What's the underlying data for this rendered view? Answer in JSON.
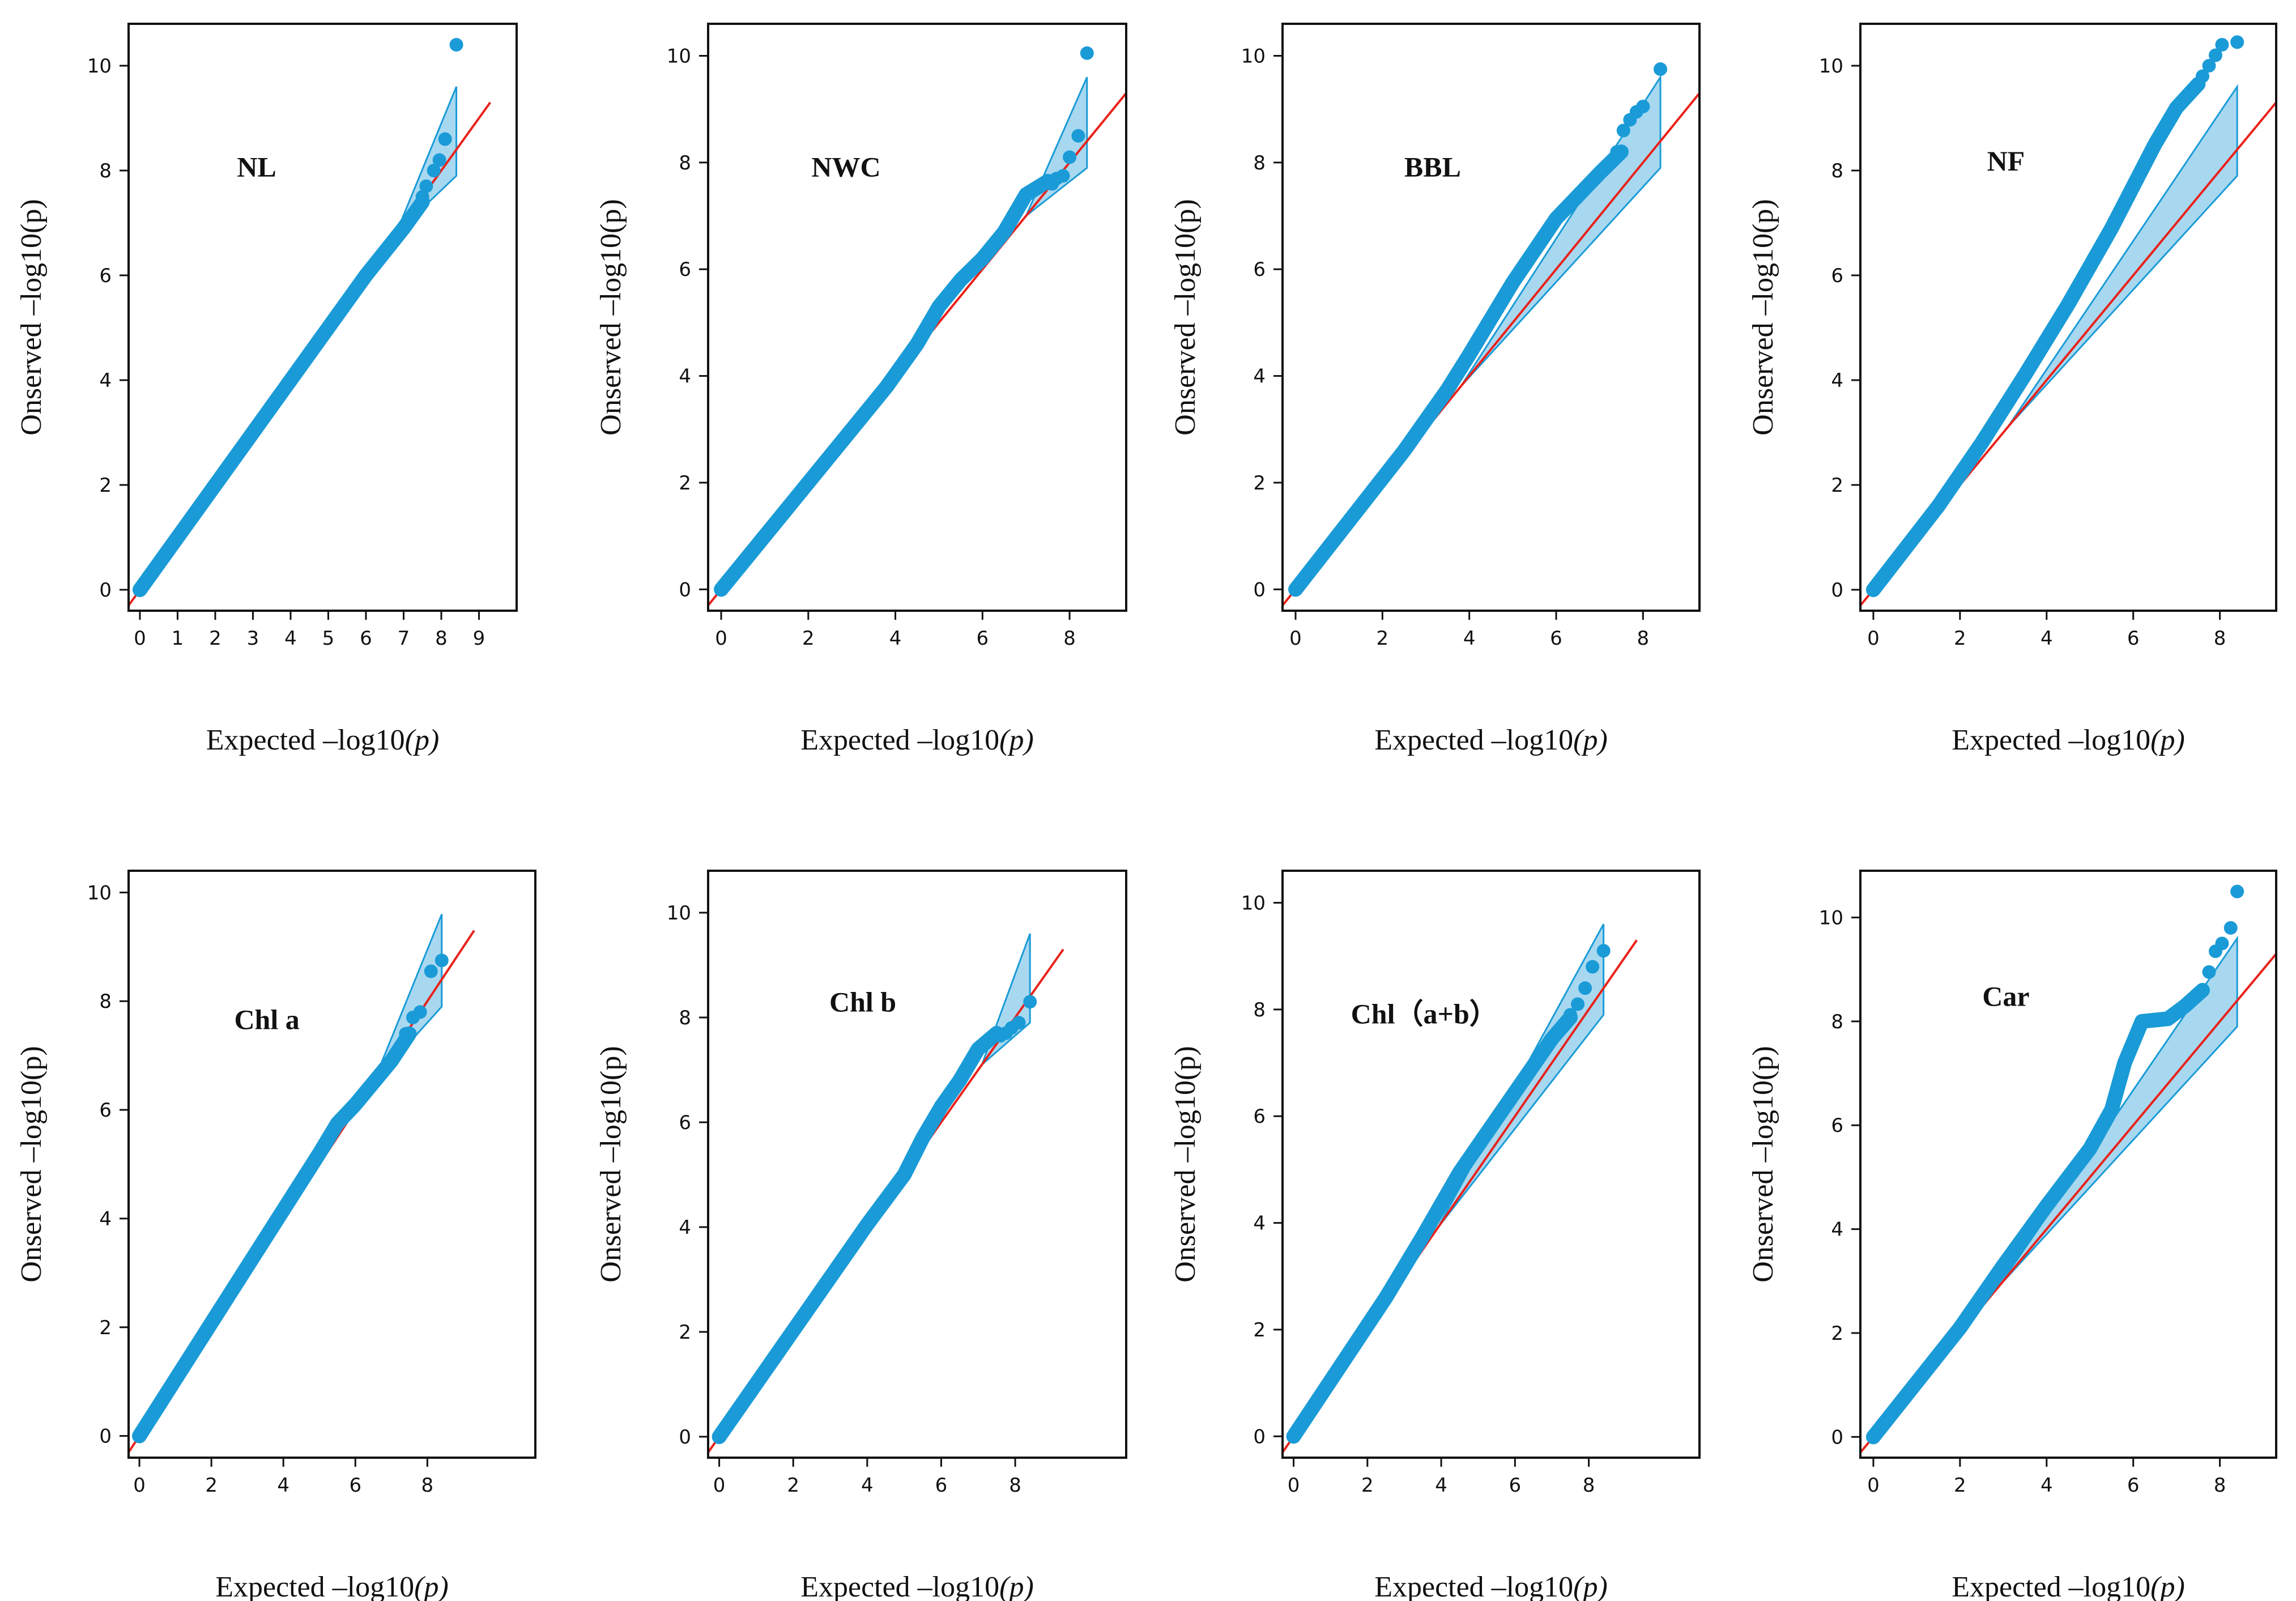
{
  "figure": {
    "style": {
      "point_color": "#1a9bd7",
      "band_fill": "#a8d8f0",
      "band_stroke": "#1a9bd7",
      "diagonal_color": "#e8221b",
      "frame_color": "#111111"
    }
  },
  "chart_data": [
    {
      "type": "scatter",
      "title": "NL",
      "xlabel": "Expected –log10",
      "xlabel_italic": "(p)",
      "ylabel": "Onserved –log10(p)",
      "xlim": [
        -0.3,
        10.0
      ],
      "ylim": [
        -0.4,
        10.8
      ],
      "xticks": [
        0,
        1,
        2,
        3,
        4,
        5,
        6,
        7,
        8,
        9
      ],
      "yticks": [
        0,
        2,
        4,
        6,
        8,
        10
      ],
      "diagonal_to": 9.3,
      "band": {
        "from": 6.8,
        "to": 8.4,
        "upper_end": 9.6,
        "lower_end": 7.9
      },
      "qq_curve": [
        [
          0,
          0
        ],
        [
          6.0,
          6.0
        ],
        [
          6.5,
          6.45
        ],
        [
          7.0,
          6.9
        ],
        [
          7.5,
          7.4
        ]
      ],
      "tail_points": [
        [
          7.5,
          7.5
        ],
        [
          7.6,
          7.7
        ],
        [
          7.8,
          8.0
        ],
        [
          7.95,
          8.2
        ],
        [
          8.1,
          8.6
        ],
        [
          8.4,
          10.4
        ]
      ]
    },
    {
      "type": "scatter",
      "title": "NWC",
      "xlabel": "Expected –log10",
      "xlabel_italic": "(p)",
      "ylabel": "Onserved –log10(p)",
      "xlim": [
        -0.3,
        9.3
      ],
      "ylim": [
        -0.4,
        10.6
      ],
      "xticks": [
        0,
        2,
        4,
        6,
        8
      ],
      "yticks": [
        0,
        2,
        4,
        6,
        8,
        10
      ],
      "diagonal_to": 9.3,
      "band": {
        "from": 7.0,
        "to": 8.4,
        "upper_end": 9.6,
        "lower_end": 7.9
      },
      "qq_curve": [
        [
          0,
          0
        ],
        [
          3.8,
          3.8
        ],
        [
          4.5,
          4.6
        ],
        [
          5.0,
          5.3
        ],
        [
          5.5,
          5.8
        ],
        [
          6.0,
          6.2
        ],
        [
          6.5,
          6.7
        ],
        [
          7.0,
          7.4
        ],
        [
          7.5,
          7.65
        ]
      ],
      "tail_points": [
        [
          7.6,
          7.6
        ],
        [
          7.7,
          7.7
        ],
        [
          7.85,
          7.75
        ],
        [
          8.0,
          8.1
        ],
        [
          8.2,
          8.5
        ],
        [
          8.4,
          10.05
        ]
      ]
    },
    {
      "type": "scatter",
      "title": "BBL",
      "xlabel": "Expected –log10",
      "xlabel_italic": "(p)",
      "ylabel": "Onserved –log10(p)",
      "xlim": [
        -0.3,
        9.3
      ],
      "ylim": [
        -0.4,
        10.6
      ],
      "xticks": [
        0,
        2,
        4,
        6,
        8
      ],
      "yticks": [
        0,
        2,
        4,
        6,
        8,
        10
      ],
      "diagonal_to": 9.3,
      "band": {
        "from": 3.8,
        "to": 8.4,
        "upper_end": 9.6,
        "lower_end": 7.9
      },
      "qq_curve": [
        [
          0,
          0
        ],
        [
          2.5,
          2.6
        ],
        [
          3.5,
          3.75
        ],
        [
          4.0,
          4.4
        ],
        [
          5.0,
          5.75
        ],
        [
          6.0,
          6.95
        ],
        [
          7.0,
          7.8
        ],
        [
          7.5,
          8.2
        ]
      ],
      "tail_points": [
        [
          7.4,
          8.2
        ],
        [
          7.55,
          8.6
        ],
        [
          7.7,
          8.8
        ],
        [
          7.85,
          8.95
        ],
        [
          8.0,
          9.05
        ],
        [
          8.4,
          9.75
        ]
      ]
    },
    {
      "type": "scatter",
      "title": "NF",
      "xlabel": "Expected –log10",
      "xlabel_italic": "(p)",
      "ylabel": "Onserved –log10(p)",
      "xlim": [
        -0.3,
        9.3
      ],
      "ylim": [
        -0.4,
        10.8
      ],
      "xticks": [
        0,
        2,
        4,
        6,
        8
      ],
      "yticks": [
        0,
        2,
        4,
        6,
        8,
        10
      ],
      "diagonal_to": 9.3,
      "band": {
        "from": 3.1,
        "to": 8.4,
        "upper_end": 9.6,
        "lower_end": 7.9
      },
      "qq_curve": [
        [
          0,
          0
        ],
        [
          1.5,
          1.6
        ],
        [
          2.5,
          2.8
        ],
        [
          3.5,
          4.1
        ],
        [
          4.5,
          5.45
        ],
        [
          5.5,
          6.9
        ],
        [
          6.5,
          8.5
        ],
        [
          7.0,
          9.2
        ],
        [
          7.5,
          9.65
        ]
      ],
      "tail_points": [
        [
          7.6,
          9.8
        ],
        [
          7.75,
          10.0
        ],
        [
          7.9,
          10.2
        ],
        [
          8.05,
          10.4
        ],
        [
          8.4,
          10.45
        ]
      ]
    },
    {
      "type": "scatter",
      "title": "Chl a",
      "xlabel": "Expected –log10",
      "xlabel_italic": "(p)",
      "ylabel": "Onserved –log10(p)",
      "xlim": [
        -0.3,
        11.0
      ],
      "ylim": [
        -0.4,
        10.4
      ],
      "xticks": [
        0,
        2,
        4,
        6,
        8
      ],
      "yticks": [
        0,
        2,
        4,
        6,
        8,
        10
      ],
      "diagonal_to": 9.3,
      "band": {
        "from": 6.5,
        "to": 8.4,
        "upper_end": 9.6,
        "lower_end": 7.9
      },
      "qq_curve": [
        [
          0,
          0
        ],
        [
          5.0,
          5.2
        ],
        [
          5.5,
          5.75
        ],
        [
          6.0,
          6.1
        ],
        [
          6.5,
          6.5
        ],
        [
          7.0,
          6.9
        ],
        [
          7.5,
          7.4
        ]
      ],
      "tail_points": [
        [
          7.4,
          7.4
        ],
        [
          7.6,
          7.7
        ],
        [
          7.8,
          7.8
        ],
        [
          8.1,
          8.55
        ],
        [
          8.4,
          8.75
        ]
      ]
    },
    {
      "type": "scatter",
      "title": "Chl b",
      "xlabel": "Expected –log10",
      "xlabel_italic": "(p)",
      "ylabel": "Onserved –log10(p)",
      "xlim": [
        -0.3,
        11.0
      ],
      "ylim": [
        -0.4,
        10.8
      ],
      "xticks": [
        0,
        2,
        4,
        6,
        8
      ],
      "yticks": [
        0,
        2,
        4,
        6,
        8,
        10
      ],
      "diagonal_to": 9.3,
      "band": {
        "from": 7.1,
        "to": 8.4,
        "upper_end": 9.6,
        "lower_end": 7.9
      },
      "qq_curve": [
        [
          0,
          0
        ],
        [
          4.0,
          4.05
        ],
        [
          5.0,
          5.0
        ],
        [
          5.5,
          5.7
        ],
        [
          6.0,
          6.3
        ],
        [
          6.5,
          6.8
        ],
        [
          7.0,
          7.4
        ],
        [
          7.5,
          7.7
        ]
      ],
      "tail_points": [
        [
          7.6,
          7.65
        ],
        [
          7.75,
          7.7
        ],
        [
          7.9,
          7.8
        ],
        [
          8.1,
          7.9
        ],
        [
          8.4,
          8.3
        ]
      ]
    },
    {
      "type": "scatter",
      "title": "Chl（a+b）",
      "xlabel": "Expected –log10",
      "xlabel_italic": "(p)",
      "ylabel": "Onserved –log10(p)",
      "xlim": [
        -0.3,
        11.0
      ],
      "ylim": [
        -0.4,
        10.6
      ],
      "xticks": [
        0,
        2,
        4,
        6,
        8
      ],
      "yticks": [
        0,
        2,
        4,
        6,
        8,
        10
      ],
      "diagonal_to": 9.3,
      "band": {
        "from": 3.9,
        "to": 8.4,
        "upper_end": 9.6,
        "lower_end": 7.9
      },
      "qq_curve": [
        [
          0,
          0
        ],
        [
          2.5,
          2.6
        ],
        [
          3.5,
          3.75
        ],
        [
          4.5,
          4.95
        ],
        [
          5.5,
          5.95
        ],
        [
          6.5,
          6.95
        ],
        [
          7.0,
          7.45
        ],
        [
          7.5,
          7.85
        ]
      ],
      "tail_points": [
        [
          7.5,
          7.9
        ],
        [
          7.7,
          8.1
        ],
        [
          7.9,
          8.4
        ],
        [
          8.1,
          8.8
        ],
        [
          8.4,
          9.1
        ]
      ]
    },
    {
      "type": "scatter",
      "title": "Car",
      "xlabel": "Expected –log10",
      "xlabel_italic": "(p)",
      "ylabel": "Onserved –log10(p)",
      "xlim": [
        -0.3,
        9.3
      ],
      "ylim": [
        -0.4,
        10.9
      ],
      "xticks": [
        0,
        2,
        4,
        6,
        8
      ],
      "yticks": [
        0,
        2,
        4,
        6,
        8,
        10
      ],
      "diagonal_to": 9.3,
      "band": {
        "from": 2.9,
        "to": 8.4,
        "upper_end": 9.6,
        "lower_end": 7.9
      },
      "qq_curve": [
        [
          0,
          0
        ],
        [
          2.0,
          2.1
        ],
        [
          3.0,
          3.3
        ],
        [
          4.0,
          4.45
        ],
        [
          5.0,
          5.55
        ],
        [
          5.5,
          6.3
        ],
        [
          5.8,
          7.2
        ],
        [
          6.2,
          8.0
        ],
        [
          6.8,
          8.05
        ],
        [
          7.2,
          8.3
        ],
        [
          7.6,
          8.6
        ]
      ],
      "tail_points": [
        [
          7.6,
          8.6
        ],
        [
          7.75,
          8.95
        ],
        [
          7.9,
          9.35
        ],
        [
          8.05,
          9.5
        ],
        [
          8.25,
          9.8
        ],
        [
          8.4,
          10.5
        ]
      ]
    }
  ]
}
